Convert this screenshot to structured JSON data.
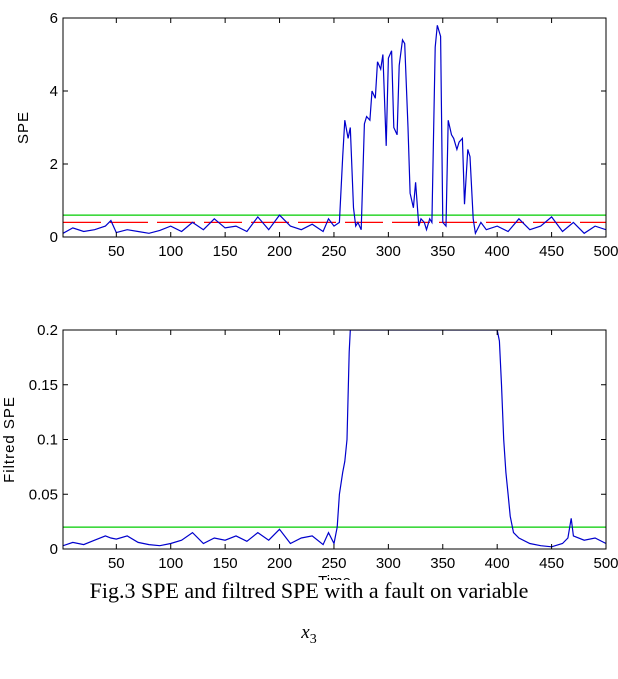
{
  "chart_data": [
    {
      "type": "line",
      "ylabel": "SPE",
      "xlabel": "",
      "xlim": [
        1,
        500
      ],
      "ylim": [
        0,
        6
      ],
      "xticks": [
        50,
        100,
        150,
        200,
        250,
        300,
        350,
        400,
        450,
        500
      ],
      "yticks": [
        0,
        2,
        4,
        6
      ],
      "thresholds": [
        {
          "value": 0.6,
          "color": "#00cc00"
        },
        {
          "value": 0.4,
          "color": "#ff0000",
          "dashed": true
        }
      ],
      "series_color": "#0000cc",
      "x": [
        1,
        10,
        20,
        30,
        40,
        45,
        50,
        60,
        70,
        80,
        90,
        100,
        110,
        120,
        130,
        140,
        150,
        160,
        170,
        180,
        190,
        200,
        210,
        220,
        230,
        240,
        245,
        250,
        255,
        258,
        260,
        263,
        265,
        268,
        270,
        272,
        275,
        278,
        280,
        283,
        285,
        288,
        290,
        293,
        295,
        298,
        300,
        303,
        305,
        308,
        310,
        313,
        315,
        318,
        320,
        323,
        325,
        328,
        330,
        333,
        335,
        338,
        340,
        343,
        345,
        348,
        350,
        353,
        355,
        358,
        360,
        363,
        365,
        368,
        370,
        373,
        375,
        378,
        380,
        385,
        390,
        400,
        410,
        420,
        430,
        440,
        450,
        460,
        470,
        480,
        490,
        500
      ],
      "values": [
        0.1,
        0.25,
        0.15,
        0.2,
        0.3,
        0.45,
        0.12,
        0.2,
        0.15,
        0.1,
        0.18,
        0.3,
        0.15,
        0.4,
        0.2,
        0.5,
        0.25,
        0.3,
        0.15,
        0.55,
        0.2,
        0.6,
        0.3,
        0.2,
        0.35,
        0.15,
        0.5,
        0.3,
        0.4,
        2.2,
        3.2,
        2.7,
        3.0,
        0.8,
        0.3,
        0.4,
        0.2,
        3.1,
        3.3,
        3.2,
        4.0,
        3.8,
        4.8,
        4.6,
        5.0,
        2.5,
        4.9,
        5.1,
        3.0,
        2.8,
        4.7,
        5.4,
        5.3,
        3.0,
        1.2,
        0.8,
        1.5,
        0.3,
        0.5,
        0.4,
        0.2,
        0.5,
        0.4,
        5.2,
        5.8,
        5.5,
        0.4,
        0.3,
        3.2,
        2.8,
        2.7,
        2.4,
        2.6,
        2.7,
        0.9,
        2.4,
        2.2,
        0.5,
        0.1,
        0.4,
        0.2,
        0.3,
        0.15,
        0.5,
        0.2,
        0.3,
        0.55,
        0.15,
        0.4,
        0.1,
        0.3,
        0.2
      ]
    },
    {
      "type": "line",
      "ylabel": "Filtred SPE",
      "xlabel": "Time",
      "xlim": [
        1,
        500
      ],
      "ylim": [
        0,
        0.2
      ],
      "xticks": [
        50,
        100,
        150,
        200,
        250,
        300,
        350,
        400,
        450,
        500
      ],
      "yticks": [
        0,
        0.05,
        0.1,
        0.15,
        0.2
      ],
      "thresholds": [
        {
          "value": 0.02,
          "color": "#00cc00"
        }
      ],
      "series_color": "#0000cc",
      "x": [
        1,
        10,
        20,
        30,
        40,
        45,
        50,
        60,
        70,
        80,
        90,
        100,
        110,
        120,
        130,
        140,
        150,
        160,
        170,
        180,
        190,
        200,
        210,
        220,
        230,
        240,
        245,
        250,
        253,
        255,
        258,
        260,
        262,
        264,
        265,
        400,
        402,
        404,
        406,
        408,
        410,
        412,
        415,
        420,
        430,
        440,
        450,
        460,
        465,
        468,
        470,
        480,
        490,
        500
      ],
      "values": [
        0.003,
        0.006,
        0.004,
        0.008,
        0.012,
        0.01,
        0.009,
        0.012,
        0.006,
        0.004,
        0.003,
        0.005,
        0.008,
        0.015,
        0.005,
        0.01,
        0.008,
        0.012,
        0.007,
        0.015,
        0.008,
        0.018,
        0.005,
        0.01,
        0.012,
        0.004,
        0.015,
        0.005,
        0.02,
        0.05,
        0.07,
        0.08,
        0.1,
        0.18,
        0.2,
        0.2,
        0.19,
        0.15,
        0.1,
        0.07,
        0.05,
        0.03,
        0.015,
        0.01,
        0.005,
        0.003,
        0.002,
        0.005,
        0.01,
        0.028,
        0.012,
        0.008,
        0.01,
        0.005
      ]
    }
  ],
  "caption": "Fig.3 SPE and filtred SPE with a fault on variable",
  "variable": {
    "symbol": "x",
    "subscript": "3"
  }
}
